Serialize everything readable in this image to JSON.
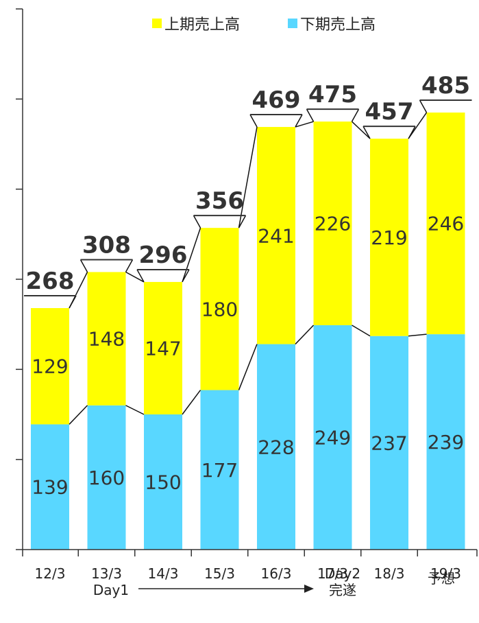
{
  "legend": {
    "first_half": "上期売上高",
    "second_half": "下期売上高"
  },
  "colors": {
    "first_half": "#ffff00",
    "second_half": "#59d7ff",
    "axis": "#333333",
    "connector": "#111111"
  },
  "annotations": {
    "day1": "Day1",
    "day2_line1": "Day2",
    "day2_line2": "完遂",
    "forecast": "予想"
  },
  "chart_data": {
    "type": "bar",
    "stacked": true,
    "categories": [
      "12/3",
      "13/3",
      "14/3",
      "15/3",
      "16/3",
      "17/3",
      "18/3",
      "19/3"
    ],
    "series": [
      {
        "name": "下期売上高",
        "values": [
          139,
          160,
          150,
          177,
          228,
          249,
          237,
          239
        ]
      },
      {
        "name": "上期売上高",
        "values": [
          129,
          148,
          147,
          180,
          241,
          226,
          219,
          246
        ]
      }
    ],
    "totals": [
      268,
      308,
      296,
      356,
      469,
      475,
      457,
      485
    ],
    "ylim": [
      0,
      600
    ],
    "grid": false,
    "legend_position": "top"
  }
}
